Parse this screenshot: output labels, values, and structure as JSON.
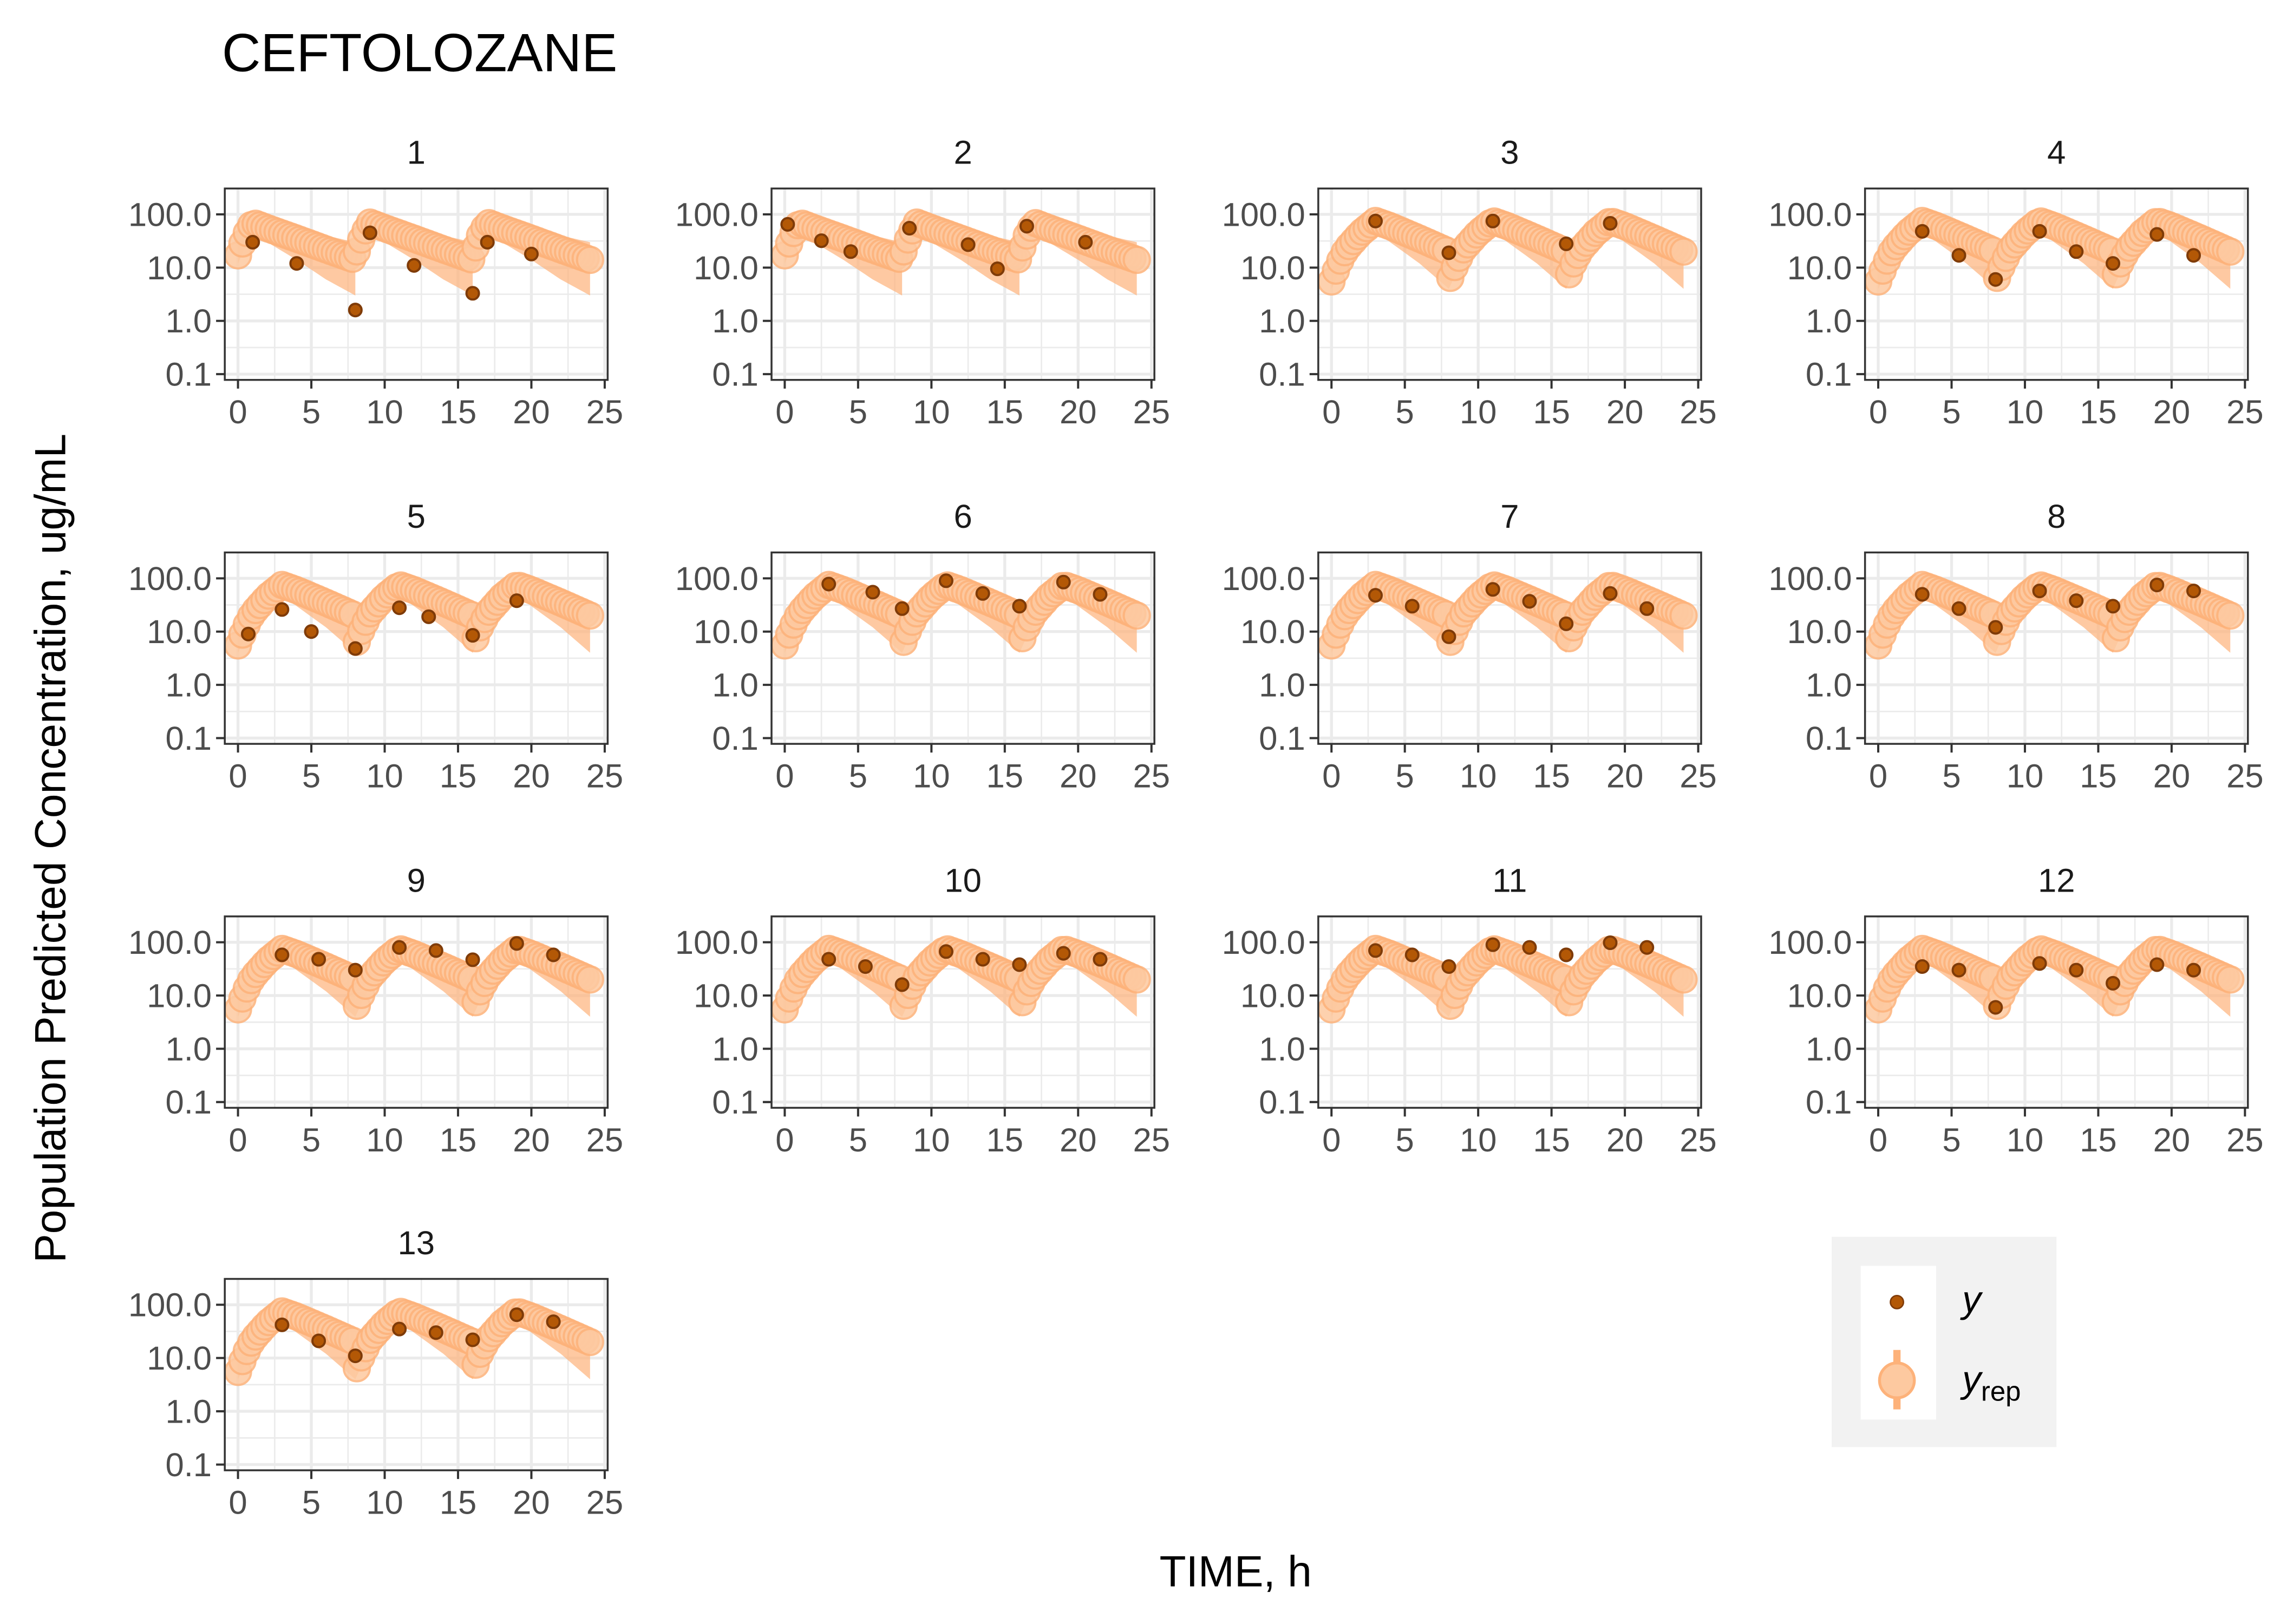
{
  "chart_data": {
    "type": "scatter",
    "title": "CEFTOLOZANE",
    "xlabel": "TIME, h",
    "ylabel": "Population Predicted Concentration, ug/mL",
    "yscale": "log10",
    "xlim": [
      -0.9,
      25.2
    ],
    "ylim": [
      0.078,
      306
    ],
    "x_ticks": [
      0,
      5,
      10,
      15,
      20,
      25
    ],
    "x_tick_labels": [
      "0",
      "5",
      "10",
      "15",
      "20",
      "25"
    ],
    "y_ticks": [
      0.1,
      1,
      10,
      100
    ],
    "y_tick_labels": [
      "0.1",
      "1.0",
      "10.0",
      "100.0"
    ],
    "grid": true,
    "legend": {
      "position": "bottom-right",
      "entries": [
        {
          "label": "y",
          "sub": ""
        },
        {
          "label": "y",
          "sub": "rep"
        }
      ]
    },
    "colors": {
      "y_fill": "#b35806",
      "y_stroke": "#7f3b08",
      "yrep_fill": "#fdc9a0",
      "yrep_stroke": "#fdb27a",
      "band": "#fdb27a"
    },
    "dose_times": [
      0,
      8,
      16
    ],
    "yrep_profiles": {
      "short": {
        "t": [
          0,
          0.5,
          1,
          2,
          4,
          6,
          8
        ],
        "median": [
          17,
          40,
          70,
          55,
          35,
          22,
          14
        ],
        "lo": [
          12,
          25,
          45,
          30,
          14,
          6,
          3
        ],
        "hi": [
          25,
          60,
          95,
          80,
          55,
          40,
          30
        ]
      },
      "long": {
        "t": [
          0,
          0.5,
          1,
          2,
          3,
          4,
          6,
          8
        ],
        "median": [
          5.5,
          12,
          22,
          45,
          75,
          60,
          35,
          20
        ],
        "lo": [
          4,
          8,
          15,
          30,
          50,
          30,
          12,
          4
        ],
        "hi": [
          8,
          18,
          32,
          60,
          95,
          85,
          55,
          35
        ]
      }
    },
    "panels": [
      {
        "id": "1",
        "profile": "short",
        "y": [
          [
            1,
            30
          ],
          [
            4,
            12
          ],
          [
            8,
            1.6
          ],
          [
            9,
            45
          ],
          [
            12,
            11
          ],
          [
            16,
            3.3
          ],
          [
            17,
            30
          ],
          [
            20,
            18
          ]
        ]
      },
      {
        "id": "2",
        "profile": "short",
        "y": [
          [
            0.2,
            65
          ],
          [
            2.5,
            32
          ],
          [
            4.5,
            20
          ],
          [
            8.5,
            55
          ],
          [
            12.5,
            27
          ],
          [
            14.5,
            9.5
          ],
          [
            16.5,
            60
          ],
          [
            20.5,
            30
          ]
        ]
      },
      {
        "id": "3",
        "profile": "long",
        "y": [
          [
            3,
            75
          ],
          [
            8,
            19
          ],
          [
            11,
            75
          ],
          [
            16,
            28
          ],
          [
            19,
            68
          ]
        ]
      },
      {
        "id": "4",
        "profile": "long",
        "y": [
          [
            3,
            48
          ],
          [
            5.5,
            17
          ],
          [
            8,
            6
          ],
          [
            11,
            48
          ],
          [
            13.5,
            20
          ],
          [
            16,
            12
          ],
          [
            19,
            42
          ],
          [
            21.5,
            17
          ]
        ]
      },
      {
        "id": "5",
        "profile": "long",
        "y": [
          [
            0.7,
            9
          ],
          [
            3,
            26
          ],
          [
            5,
            10
          ],
          [
            8,
            4.8
          ],
          [
            11,
            28
          ],
          [
            13,
            19
          ],
          [
            16,
            8.5
          ],
          [
            19,
            38
          ]
        ]
      },
      {
        "id": "6",
        "profile": "long",
        "y": [
          [
            3,
            78
          ],
          [
            6,
            55
          ],
          [
            8,
            27
          ],
          [
            11,
            90
          ],
          [
            13.5,
            52
          ],
          [
            16,
            30
          ],
          [
            19,
            85
          ],
          [
            21.5,
            50
          ]
        ]
      },
      {
        "id": "7",
        "profile": "long",
        "y": [
          [
            3,
            48
          ],
          [
            5.5,
            30
          ],
          [
            8,
            8
          ],
          [
            11,
            62
          ],
          [
            13.5,
            37
          ],
          [
            16,
            14
          ],
          [
            19,
            52
          ],
          [
            21.5,
            27
          ]
        ]
      },
      {
        "id": "8",
        "profile": "long",
        "y": [
          [
            3,
            50
          ],
          [
            5.5,
            27
          ],
          [
            8,
            12
          ],
          [
            11,
            58
          ],
          [
            13.5,
            38
          ],
          [
            16,
            30
          ],
          [
            19,
            75
          ],
          [
            21.5,
            58
          ]
        ]
      },
      {
        "id": "9",
        "profile": "long",
        "y": [
          [
            3,
            58
          ],
          [
            5.5,
            48
          ],
          [
            8,
            30
          ],
          [
            11,
            80
          ],
          [
            13.5,
            70
          ],
          [
            16,
            47
          ],
          [
            19,
            95
          ],
          [
            21.5,
            58
          ]
        ]
      },
      {
        "id": "10",
        "profile": "long",
        "y": [
          [
            3,
            48
          ],
          [
            5.5,
            35
          ],
          [
            8,
            16
          ],
          [
            11,
            67
          ],
          [
            13.5,
            48
          ],
          [
            16,
            38
          ],
          [
            19,
            62
          ],
          [
            21.5,
            48
          ]
        ]
      },
      {
        "id": "11",
        "profile": "long",
        "y": [
          [
            3,
            70
          ],
          [
            5.5,
            58
          ],
          [
            8,
            35
          ],
          [
            11,
            90
          ],
          [
            13.5,
            80
          ],
          [
            16,
            58
          ],
          [
            19,
            98
          ],
          [
            21.5,
            80
          ]
        ]
      },
      {
        "id": "12",
        "profile": "long",
        "y": [
          [
            3,
            35
          ],
          [
            5.5,
            30
          ],
          [
            8,
            6
          ],
          [
            11,
            40
          ],
          [
            13.5,
            30
          ],
          [
            16,
            17
          ],
          [
            19,
            38
          ],
          [
            21.5,
            30
          ]
        ]
      },
      {
        "id": "13",
        "profile": "long",
        "y": [
          [
            3,
            42
          ],
          [
            5.5,
            21
          ],
          [
            8,
            11
          ],
          [
            11,
            35
          ],
          [
            13.5,
            30
          ],
          [
            16,
            22
          ],
          [
            19,
            65
          ],
          [
            21.5,
            48
          ]
        ]
      }
    ]
  }
}
